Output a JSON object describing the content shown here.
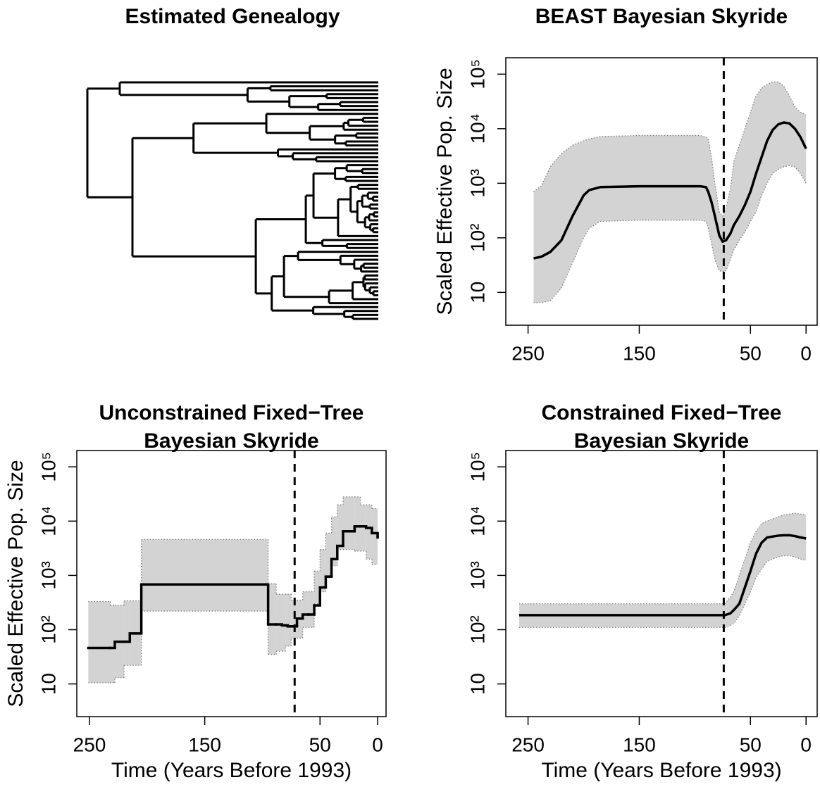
{
  "tree": {
    "title": "Estimated Genealogy"
  },
  "chart_data": [
    {
      "type": "line",
      "title": [
        "BEAST Bayesian Skyride"
      ],
      "ylabel": "Scaled Effective Pop. Size",
      "log_y": true,
      "steps": false,
      "color": "#000000",
      "band_color": "#d3d3d3",
      "vline": 74,
      "xlim": [
        270,
        -10
      ],
      "xticks": [
        250,
        150,
        50,
        0
      ],
      "ylim": [
        2.5,
        200000
      ],
      "yticks": [
        10,
        {
          "value": 100,
          "label": "10²"
        },
        {
          "value": 1000,
          "label": "10³"
        },
        {
          "value": 10000,
          "label": "10⁴"
        },
        {
          "value": 100000,
          "label": "10⁵"
        }
      ],
      "x": [
        245,
        238,
        230,
        220,
        210,
        200,
        195,
        185,
        150,
        120,
        95,
        90,
        88,
        85,
        82,
        78,
        75,
        72,
        68,
        65,
        60,
        55,
        50,
        45,
        40,
        35,
        30,
        25,
        20,
        15,
        10,
        5,
        0
      ],
      "values": [
        42,
        45,
        55,
        90,
        250,
        600,
        750,
        850,
        880,
        880,
        880,
        850,
        700,
        450,
        250,
        110,
        85,
        90,
        120,
        170,
        250,
        400,
        700,
        1500,
        3000,
        6000,
        9500,
        12000,
        13000,
        12500,
        10000,
        7000,
        4300
      ],
      "upper": [
        700,
        900,
        2000,
        3500,
        5000,
        6000,
        6500,
        7200,
        7500,
        7500,
        7500,
        7000,
        6500,
        3000,
        1000,
        300,
        250,
        350,
        800,
        2500,
        5000,
        10000,
        20000,
        40000,
        55000,
        65000,
        72000,
        72000,
        60000,
        40000,
        25000,
        20000,
        18000
      ],
      "lower": [
        6.5,
        6.5,
        7,
        12,
        35,
        100,
        150,
        200,
        210,
        210,
        210,
        200,
        150,
        80,
        40,
        25,
        24,
        25,
        40,
        60,
        90,
        130,
        200,
        300,
        600,
        1000,
        1500,
        1800,
        2000,
        2100,
        2000,
        1500,
        1000
      ]
    },
    {
      "type": "line",
      "title": [
        "Unconstrained Fixed−Tree",
        "Bayesian Skyride"
      ],
      "ylabel": "Scaled Effective Pop. Size",
      "xlabel": "Time (Years Before 1993)",
      "log_y": true,
      "steps": true,
      "color": "#000000",
      "band_color": "#d3d3d3",
      "vline": 72,
      "xlim": [
        261,
        -7.3
      ],
      "xticks": [
        250,
        150,
        50,
        0
      ],
      "ylim": [
        2.5,
        200000
      ],
      "yticks": [
        10,
        {
          "value": 100,
          "label": "10²"
        },
        {
          "value": 1000,
          "label": "10³"
        },
        {
          "value": 10000,
          "label": "10⁴"
        },
        {
          "value": 100000,
          "label": "10⁵"
        }
      ],
      "x": [
        251,
        232,
        228,
        220,
        215,
        205,
        95,
        88,
        83,
        80,
        78,
        75,
        70,
        65,
        60,
        55,
        50,
        45,
        40,
        35,
        30,
        20,
        15,
        10,
        5,
        0
      ],
      "values": [
        46,
        46,
        60,
        60,
        85,
        680,
        125,
        125,
        120,
        120,
        115,
        115,
        160,
        190,
        190,
        280,
        600,
        950,
        2000,
        3500,
        6500,
        8000,
        8000,
        7500,
        6000,
        5000
      ],
      "upper": [
        330,
        280,
        280,
        340,
        340,
        4600,
        700,
        450,
        450,
        450,
        450,
        350,
        350,
        500,
        500,
        1200,
        3000,
        6000,
        12000,
        20000,
        28000,
        28000,
        20000,
        20000,
        17000,
        17000
      ],
      "lower": [
        10.5,
        10.5,
        13,
        22,
        22,
        220,
        35,
        40,
        40,
        50,
        50,
        70,
        70,
        110,
        110,
        300,
        500,
        900,
        1500,
        3000,
        3000,
        2800,
        2800,
        2000,
        1600,
        1600
      ]
    },
    {
      "type": "line",
      "title": [
        "Constrained Fixed−Tree",
        "Bayesian Skyride"
      ],
      "xlabel": "Time (Years Before 1993)",
      "log_y": true,
      "steps": false,
      "color": "#000000",
      "band_color": "#d3d3d3",
      "vline": 74,
      "xlim": [
        270,
        -10
      ],
      "xticks": [
        250,
        150,
        50,
        0
      ],
      "ylim": [
        2.5,
        200000
      ],
      "yticks": [
        10,
        {
          "value": 100,
          "label": "10²"
        },
        {
          "value": 1000,
          "label": "10³"
        },
        {
          "value": 10000,
          "label": "10⁴"
        },
        {
          "value": 100000,
          "label": "10⁵"
        }
      ],
      "x": [
        258,
        73,
        68,
        65,
        60,
        55,
        50,
        45,
        40,
        35,
        30,
        25,
        20,
        15,
        10,
        5,
        0
      ],
      "values": [
        185,
        185,
        200,
        230,
        300,
        600,
        1200,
        2500,
        4000,
        5000,
        5200,
        5400,
        5500,
        5500,
        5300,
        5000,
        4800
      ],
      "upper": [
        300,
        300,
        400,
        500,
        1000,
        2000,
        4000,
        6500,
        9000,
        10000,
        11000,
        12000,
        13000,
        13500,
        14000,
        13500,
        13000
      ],
      "lower": [
        110,
        110,
        120,
        130,
        180,
        300,
        500,
        900,
        1300,
        1800,
        2000,
        2200,
        2300,
        2300,
        2200,
        2000,
        1900
      ]
    }
  ]
}
